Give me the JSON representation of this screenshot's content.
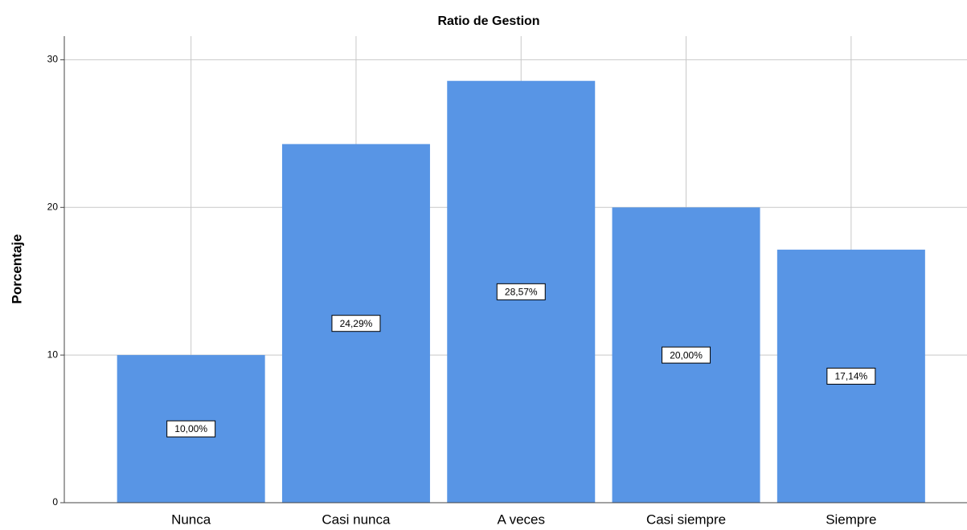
{
  "chart_data": {
    "type": "bar",
    "title": "Ratio de Gestion",
    "ylabel": "Porcentaje",
    "categories": [
      "Nunca",
      "Casi nunca",
      "A veces",
      "Casi siempre",
      "Siempre"
    ],
    "values": [
      10,
      24.29,
      28.57,
      20,
      17.14
    ],
    "value_labels": [
      "10,00%",
      "24,29%",
      "28,57%",
      "20,00%",
      "17,14%"
    ],
    "color": "#5895e5",
    "ylim": [
      0,
      31.6
    ],
    "yticks": [
      0,
      10,
      20,
      30
    ],
    "grid": true
  }
}
